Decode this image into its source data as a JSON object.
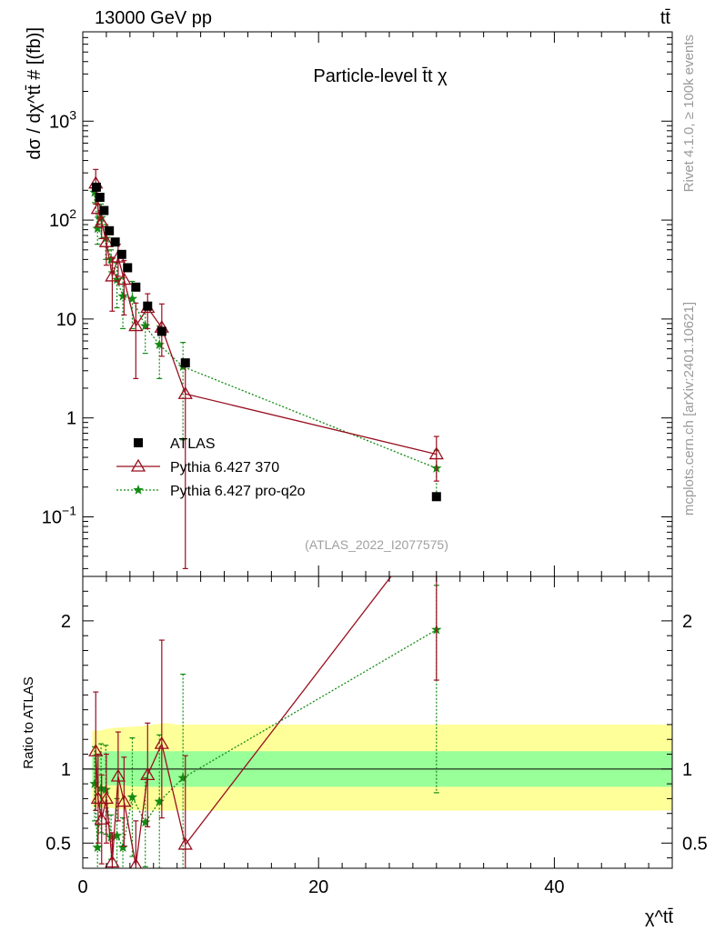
{
  "header": {
    "left": "13000 GeV pp",
    "right": "tt̄"
  },
  "side_labels": {
    "rivet": "Rivet 4.1.0, ≥ 100k events",
    "mcplots": "mcplots.cern.ch [arXiv:2401.10621]"
  },
  "colors": {
    "atlas": "#000000",
    "pythia370": "#990e1f",
    "pythia_q2o": "#138a13",
    "band_outer": "#ffff99",
    "band_inner": "#99ff99"
  },
  "chart_data": [
    {
      "id": "main",
      "type": "scatter",
      "title": "Particle-level t̄t χ",
      "ylabel": "dσ / dχ^tt̄ # [(fb)]",
      "xlabel": "χ^tt̄",
      "yscale": "log",
      "xlim": [
        0,
        50
      ],
      "ylim": [
        0.025,
        8000
      ],
      "y_ticks": [
        {
          "value": 1000,
          "base": "10",
          "exp": "3"
        },
        {
          "value": 100,
          "base": "10",
          "exp": "2"
        },
        {
          "value": 10,
          "base": "10",
          "exp": ""
        },
        {
          "value": 1,
          "base": "1",
          "exp": ""
        },
        {
          "value": 0.1,
          "base": "10",
          "exp": "−1"
        }
      ],
      "reference": "(ATLAS_2022_I2077575)",
      "legend": [
        {
          "key": "atlas",
          "label": "ATLAS"
        },
        {
          "key": "pythia370",
          "label": "Pythia 6.427 370"
        },
        {
          "key": "pythia_q2o",
          "label": "Pythia 6.427 pro-q2o"
        }
      ],
      "series": [
        {
          "key": "atlas",
          "name": "ATLAS",
          "x": [
            1.15,
            1.45,
            1.8,
            2.25,
            2.75,
            3.3,
            3.8,
            4.5,
            5.5,
            6.7,
            8.7,
            30.0
          ],
          "y": [
            215,
            170,
            125,
            78,
            60,
            45,
            33,
            21,
            13.5,
            7.5,
            3.6,
            0.16
          ],
          "err_lo": [
            0,
            0,
            0,
            0,
            0,
            0,
            0,
            0,
            0,
            0,
            0,
            0
          ],
          "err_hi": [
            0,
            0,
            0,
            0,
            0,
            0,
            0,
            0,
            0,
            0,
            0,
            0
          ]
        },
        {
          "key": "pythia370",
          "name": "Pythia 6.427 370",
          "x": [
            1.1,
            1.3,
            1.6,
            2.0,
            2.5,
            3.0,
            3.5,
            4.5,
            5.5,
            6.7,
            8.7,
            30.0
          ],
          "y": [
            235,
            130,
            95,
            60,
            27,
            42,
            25,
            8.5,
            13,
            8.2,
            1.75,
            0.43
          ],
          "err_lo": [
            90,
            40,
            30,
            25,
            15,
            15,
            14,
            6,
            5,
            4,
            1.72,
            0.2
          ],
          "err_hi": [
            90,
            40,
            30,
            25,
            15,
            15,
            14,
            6,
            5,
            6,
            1.9,
            0.22
          ]
        },
        {
          "key": "pythia_q2o",
          "name": "Pythia 6.427 pro-q2o",
          "x": [
            1.0,
            1.25,
            1.55,
            1.95,
            2.4,
            2.9,
            3.4,
            4.2,
            5.3,
            6.5,
            8.5,
            30.0
          ],
          "y": [
            190,
            82,
            105,
            65,
            40,
            25,
            17,
            16,
            8.5,
            5.5,
            3.3,
            0.31
          ],
          "err_lo": [
            40,
            25,
            40,
            25,
            10,
            12,
            9,
            8,
            4,
            3,
            2.7,
            0.15
          ],
          "err_hi": [
            40,
            25,
            40,
            25,
            10,
            12,
            9,
            8,
            4,
            3,
            2.5,
            0.16
          ]
        }
      ]
    },
    {
      "id": "ratio",
      "type": "line",
      "ylabel": "Ratio to ATLAS",
      "xlabel": "χ^tt̄",
      "xlim": [
        0,
        50
      ],
      "ylim": [
        0.33,
        2.3
      ],
      "x_ticks": [
        0,
        20,
        40
      ],
      "y_ticks": [
        0.5,
        1,
        2
      ],
      "y_tick_labels": [
        "0.5",
        "1",
        "2"
      ],
      "bands": {
        "x": [
          0.8,
          1.5,
          2.0,
          3.0,
          5.0,
          7.0,
          8.0,
          10.0,
          50.0
        ],
        "outer_lo": [
          0.74,
          0.74,
          0.74,
          0.73,
          0.72,
          0.72,
          0.72,
          0.72,
          0.72
        ],
        "outer_hi": [
          1.26,
          1.26,
          1.27,
          1.28,
          1.29,
          1.31,
          1.3,
          1.3,
          1.3
        ],
        "inner_lo": [
          0.9,
          0.89,
          0.89,
          0.89,
          0.88,
          0.88,
          0.88,
          0.88,
          0.88
        ],
        "inner_hi": [
          1.1,
          1.11,
          1.12,
          1.12,
          1.12,
          1.12,
          1.12,
          1.12,
          1.12
        ]
      },
      "series": [
        {
          "key": "pythia370",
          "name": "Pythia 6.427 370",
          "x": [
            1.1,
            1.3,
            1.6,
            2.0,
            2.5,
            3.0,
            3.5,
            4.5,
            5.5,
            6.7,
            8.7,
            30.0
          ],
          "y": [
            1.12,
            0.8,
            0.66,
            0.8,
            0.37,
            0.95,
            0.78,
            0.35,
            0.96,
            1.17,
            0.49,
            2.7
          ],
          "err_lo": [
            0.4,
            0.3,
            0.3,
            0.3,
            0.2,
            0.3,
            0.3,
            0.3,
            0.35,
            0.5,
            0.49,
            1.1
          ],
          "err_hi": [
            0.4,
            0.3,
            0.3,
            0.3,
            0.2,
            0.3,
            0.3,
            0.3,
            0.35,
            0.7,
            0.6,
            1.2
          ]
        },
        {
          "key": "pythia_q2o",
          "name": "Pythia 6.427 pro-q2o",
          "x": [
            1.0,
            1.25,
            1.55,
            1.95,
            2.4,
            2.9,
            3.4,
            4.2,
            5.3,
            6.5,
            8.5,
            30.0
          ],
          "y": [
            0.9,
            0.47,
            0.87,
            0.86,
            0.54,
            0.55,
            0.47,
            0.81,
            0.64,
            0.78,
            0.94,
            1.94
          ],
          "err_lo": [
            0.25,
            0.15,
            0.3,
            0.3,
            0.15,
            0.25,
            0.2,
            0.4,
            0.3,
            0.45,
            0.7,
            1.1
          ],
          "err_hi": [
            0.25,
            0.15,
            0.3,
            0.3,
            0.15,
            0.25,
            0.2,
            0.4,
            0.3,
            0.45,
            0.7,
            0.3
          ]
        }
      ]
    }
  ]
}
